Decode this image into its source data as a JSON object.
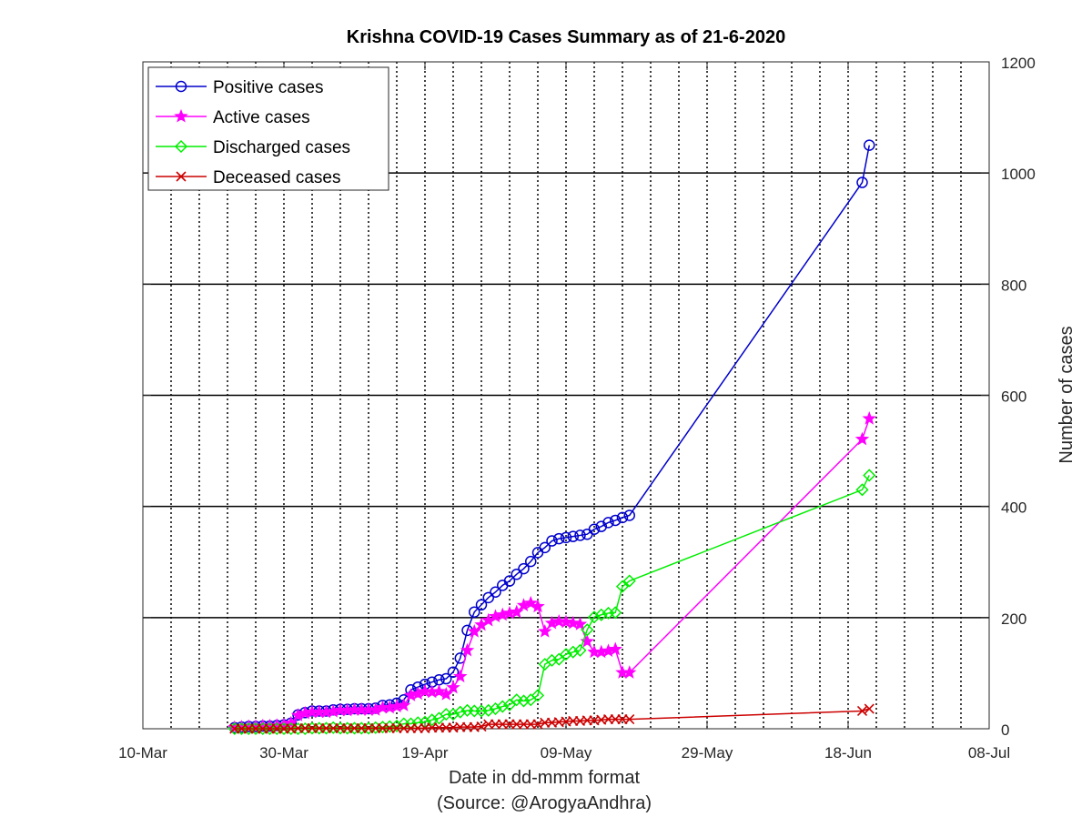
{
  "chart_data": {
    "type": "line",
    "title": "Krishna COVID-19 Cases Summary as of 21-6-2020",
    "xlabel": "Date in dd-mmm format",
    "xlabel_source": "(Source: @ArogyaAndhra)",
    "ylabel": "Number of cases",
    "y_axis_side": "right",
    "ylim": [
      0,
      1200
    ],
    "yticks": [
      0,
      200,
      400,
      600,
      800,
      1000,
      1200
    ],
    "xlim": [
      "2020-03-10",
      "2020-07-08"
    ],
    "xticks": [
      {
        "date": "2020-03-10",
        "label": "10-Mar"
      },
      {
        "date": "2020-03-30",
        "label": "30-Mar"
      },
      {
        "date": "2020-04-19",
        "label": "19-Apr"
      },
      {
        "date": "2020-05-09",
        "label": "09-May"
      },
      {
        "date": "2020-05-29",
        "label": "29-May"
      },
      {
        "date": "2020-06-18",
        "label": "18-Jun"
      },
      {
        "date": "2020-07-08",
        "label": "08-Jul"
      }
    ],
    "grid": {
      "x_minor": "dotted every 4 days",
      "y_major": "solid"
    },
    "legend_position": "top-left",
    "dates": [
      "2020-03-23",
      "2020-03-24",
      "2020-03-25",
      "2020-03-26",
      "2020-03-27",
      "2020-03-28",
      "2020-03-29",
      "2020-03-30",
      "2020-03-31",
      "2020-04-01",
      "2020-04-02",
      "2020-04-03",
      "2020-04-04",
      "2020-04-05",
      "2020-04-06",
      "2020-04-07",
      "2020-04-08",
      "2020-04-09",
      "2020-04-10",
      "2020-04-11",
      "2020-04-12",
      "2020-04-13",
      "2020-04-14",
      "2020-04-15",
      "2020-04-16",
      "2020-04-17",
      "2020-04-18",
      "2020-04-19",
      "2020-04-20",
      "2020-04-21",
      "2020-04-22",
      "2020-04-23",
      "2020-04-24",
      "2020-04-25",
      "2020-04-26",
      "2020-04-27",
      "2020-04-28",
      "2020-04-29",
      "2020-04-30",
      "2020-05-01",
      "2020-05-02",
      "2020-05-03",
      "2020-05-04",
      "2020-05-05",
      "2020-05-06",
      "2020-05-07",
      "2020-05-08",
      "2020-05-09",
      "2020-05-10",
      "2020-05-11",
      "2020-05-12",
      "2020-05-13",
      "2020-05-14",
      "2020-05-15",
      "2020-05-16",
      "2020-05-17",
      "2020-05-18",
      "2020-06-20",
      "2020-06-21"
    ],
    "series": [
      {
        "name": "Positive cases",
        "color": "#0000cc",
        "marker": "circle",
        "values": [
          2,
          3,
          4,
          4,
          5,
          5,
          6,
          7,
          10,
          25,
          29,
          32,
          32,
          32,
          34,
          35,
          35,
          36,
          36,
          36,
          37,
          42,
          43,
          46,
          52,
          70,
          75,
          80,
          84,
          88,
          90,
          102,
          127,
          177,
          210,
          223,
          236,
          246,
          258,
          266,
          278,
          288,
          301,
          317,
          326,
          338,
          342,
          344,
          346,
          348,
          350,
          359,
          364,
          371,
          375,
          380,
          384,
          983,
          1050
        ]
      },
      {
        "name": "Active cases",
        "color": "#ff00ff",
        "marker": "star",
        "values": [
          2,
          3,
          4,
          4,
          5,
          5,
          6,
          7,
          10,
          24,
          28,
          30,
          30,
          30,
          31,
          33,
          33,
          34,
          34,
          34,
          34,
          38,
          38,
          40,
          42,
          60,
          63,
          67,
          66,
          67,
          62,
          74,
          94,
          141,
          175,
          187,
          195,
          202,
          205,
          208,
          210,
          222,
          226,
          220,
          175,
          190,
          193,
          192,
          190,
          188,
          157,
          138,
          138,
          140,
          143,
          101,
          101,
          521,
          558
        ]
      },
      {
        "name": "Discharged cases",
        "color": "#00ee00",
        "marker": "diamond",
        "values": [
          0,
          0,
          0,
          0,
          0,
          0,
          0,
          0,
          0,
          0,
          0,
          1,
          1,
          1,
          2,
          1,
          1,
          1,
          1,
          1,
          2,
          3,
          4,
          5,
          9,
          9,
          11,
          12,
          16,
          19,
          26,
          26,
          30,
          33,
          32,
          32,
          33,
          36,
          40,
          43,
          52,
          50,
          52,
          60,
          116,
          123,
          125,
          134,
          138,
          141,
          178,
          201,
          205,
          208,
          209,
          256,
          266,
          430,
          456
        ]
      },
      {
        "name": "Deceased cases",
        "color": "#cc0000",
        "marker": "x",
        "values": [
          0,
          0,
          0,
          0,
          0,
          0,
          0,
          0,
          0,
          1,
          1,
          1,
          1,
          1,
          1,
          1,
          1,
          1,
          1,
          1,
          1,
          1,
          1,
          1,
          1,
          1,
          1,
          1,
          2,
          2,
          2,
          2,
          3,
          3,
          3,
          4,
          8,
          8,
          8,
          8,
          8,
          8,
          8,
          8,
          11,
          11,
          12,
          13,
          14,
          14,
          15,
          15,
          16,
          17,
          17,
          17,
          17,
          32,
          36
        ]
      }
    ]
  }
}
